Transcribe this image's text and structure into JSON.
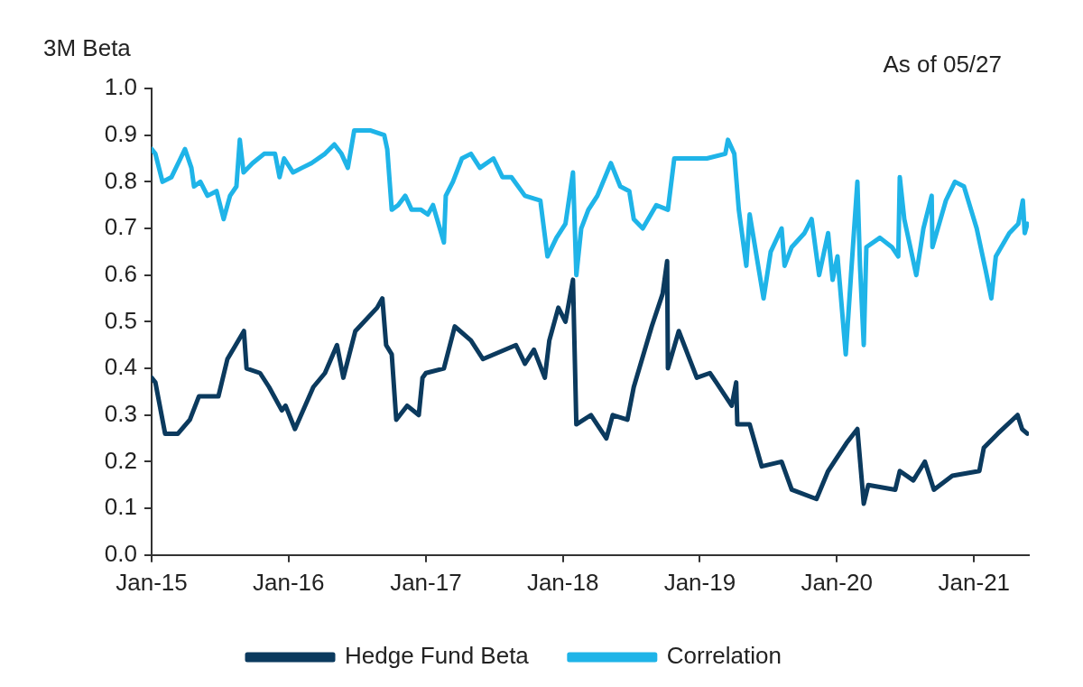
{
  "chart_data": {
    "type": "line",
    "ylabel": "3M Beta",
    "annotations": [
      "As of 05/27"
    ],
    "xlim": [
      "2015-01-01",
      "2021-05-27"
    ],
    "xticks": [
      {
        "value": "2015-01-01",
        "label": "Jan-15"
      },
      {
        "value": "2016-01-01",
        "label": "Jan-16"
      },
      {
        "value": "2017-01-01",
        "label": "Jan-17"
      },
      {
        "value": "2018-01-01",
        "label": "Jan-18"
      },
      {
        "value": "2019-01-01",
        "label": "Jan-19"
      },
      {
        "value": "2020-01-01",
        "label": "Jan-20"
      },
      {
        "value": "2021-01-01",
        "label": "Jan-21"
      }
    ],
    "ylim": [
      0,
      1
    ],
    "yticks": [
      {
        "value": 0,
        "label": "0.0"
      },
      0.1,
      0.2,
      0.3,
      0.4,
      0.5,
      0.6,
      0.7,
      0.8,
      0.9,
      {
        "value": 1,
        "label": "1.0"
      }
    ],
    "grid": false,
    "legend": "bottom",
    "marker": "none",
    "line_style": "solid",
    "series": [
      {
        "name": "Hedge Fund Beta",
        "color": "#0b3a5e",
        "x": [
          "2015-01-01",
          "2015-01-11",
          "2015-02-06",
          "2015-03-12",
          "2015-04-13",
          "2015-05-07",
          "2015-06-28",
          "2015-07-22",
          "2015-09-04",
          "2015-09-11",
          "2015-10-17",
          "2015-11-10",
          "2015-12-14",
          "2015-12-24",
          "2016-01-18",
          "2016-03-07",
          "2016-04-07",
          "2016-05-09",
          "2016-05-26",
          "2016-06-27",
          "2016-08-24",
          "2016-09-07",
          "2016-09-17",
          "2016-10-02",
          "2016-10-14",
          "2016-11-12",
          "2016-12-13",
          "2016-12-23",
          "2017-01-01",
          "2017-02-18",
          "2017-03-19",
          "2017-05-01",
          "2017-06-02",
          "2017-08-29",
          "2017-09-22",
          "2017-10-16",
          "2017-11-14",
          "2017-11-26",
          "2017-12-20",
          "2018-01-08",
          "2018-01-28",
          "2018-02-06",
          "2018-03-17",
          "2018-04-27",
          "2018-05-14",
          "2018-06-22",
          "2018-07-09",
          "2018-08-26",
          "2018-09-24",
          "2018-10-06",
          "2018-10-08",
          "2018-11-06",
          "2018-12-24",
          "2019-01-28",
          "2019-02-14",
          "2019-03-27",
          "2019-04-08",
          "2019-04-11",
          "2019-05-14",
          "2019-06-15",
          "2019-08-07",
          "2019-09-03",
          "2019-11-08",
          "2019-12-09",
          "2020-01-27",
          "2020-02-25",
          "2020-03-13",
          "2020-03-25",
          "2020-06-05",
          "2020-06-17",
          "2020-07-23",
          "2020-08-23",
          "2020-09-16",
          "2020-11-04",
          "2021-01-15",
          "2021-01-27",
          "2021-03-05",
          "2021-04-27",
          "2021-05-09",
          "2021-05-23"
        ],
        "values": [
          0.38,
          0.37,
          0.26,
          0.26,
          0.29,
          0.34,
          0.34,
          0.42,
          0.48,
          0.4,
          0.39,
          0.36,
          0.31,
          0.32,
          0.27,
          0.36,
          0.39,
          0.45,
          0.38,
          0.48,
          0.53,
          0.55,
          0.45,
          0.43,
          0.29,
          0.32,
          0.3,
          0.38,
          0.39,
          0.4,
          0.49,
          0.46,
          0.42,
          0.45,
          0.41,
          0.44,
          0.38,
          0.46,
          0.53,
          0.5,
          0.59,
          0.28,
          0.3,
          0.25,
          0.3,
          0.29,
          0.36,
          0.49,
          0.56,
          0.63,
          0.4,
          0.48,
          0.38,
          0.39,
          0.37,
          0.32,
          0.37,
          0.28,
          0.28,
          0.19,
          0.2,
          0.14,
          0.12,
          0.18,
          0.24,
          0.27,
          0.11,
          0.15,
          0.14,
          0.18,
          0.16,
          0.2,
          0.14,
          0.17,
          0.18,
          0.23,
          0.26,
          0.3,
          0.27,
          0.26
        ]
      },
      {
        "name": "Correlation",
        "color": "#1fb4e8",
        "x": [
          "2015-01-01",
          "2015-01-11",
          "2015-01-30",
          "2015-02-23",
          "2015-03-19",
          "2015-03-31",
          "2015-04-17",
          "2015-04-24",
          "2015-05-11",
          "2015-05-30",
          "2015-06-23",
          "2015-07-12",
          "2015-07-29",
          "2015-08-15",
          "2015-08-24",
          "2015-09-03",
          "2015-09-27",
          "2015-10-28",
          "2015-11-26",
          "2015-12-08",
          "2015-12-20",
          "2016-01-13",
          "2016-02-06",
          "2016-03-02",
          "2016-04-07",
          "2016-05-02",
          "2016-05-21",
          "2016-06-07",
          "2016-06-24",
          "2016-08-07",
          "2016-09-12",
          "2016-09-20",
          "2016-10-02",
          "2016-10-19",
          "2016-11-07",
          "2016-11-24",
          "2016-12-19",
          "2017-01-06",
          "2017-01-20",
          "2017-02-18",
          "2017-02-23",
          "2017-03-14",
          "2017-04-07",
          "2017-05-01",
          "2017-05-25",
          "2017-06-30",
          "2017-07-24",
          "2017-08-17",
          "2017-09-22",
          "2017-11-02",
          "2017-11-21",
          "2017-12-15",
          "2018-01-08",
          "2018-01-28",
          "2018-02-06",
          "2018-02-19",
          "2018-03-10",
          "2018-04-03",
          "2018-05-09",
          "2018-06-03",
          "2018-06-27",
          "2018-07-09",
          "2018-08-02",
          "2018-09-07",
          "2018-10-08",
          "2018-10-25",
          "2018-11-30",
          "2019-01-20",
          "2019-03-10",
          "2019-03-17",
          "2019-04-03",
          "2019-04-15",
          "2019-05-05",
          "2019-05-14",
          "2019-06-20",
          "2019-07-09",
          "2019-08-07",
          "2019-08-15",
          "2019-09-03",
          "2019-10-07",
          "2019-10-26",
          "2019-11-15",
          "2019-12-09",
          "2019-12-21",
          "2020-01-03",
          "2020-01-25",
          "2020-02-08",
          "2020-02-25",
          "2020-03-03",
          "2020-03-13",
          "2020-03-20",
          "2020-04-25",
          "2020-05-27",
          "2020-06-13",
          "2020-06-17",
          "2020-06-29",
          "2020-07-31",
          "2020-08-19",
          "2020-09-10",
          "2020-09-12",
          "2020-10-18",
          "2020-11-11",
          "2020-12-05",
          "2021-01-08",
          "2021-02-01",
          "2021-02-16",
          "2021-02-28",
          "2021-04-05",
          "2021-04-29",
          "2021-05-11",
          "2021-05-16",
          "2021-05-23"
        ],
        "values": [
          0.87,
          0.86,
          0.8,
          0.81,
          0.85,
          0.87,
          0.83,
          0.79,
          0.8,
          0.77,
          0.78,
          0.72,
          0.77,
          0.79,
          0.89,
          0.82,
          0.84,
          0.86,
          0.86,
          0.81,
          0.85,
          0.82,
          0.83,
          0.84,
          0.86,
          0.88,
          0.86,
          0.83,
          0.91,
          0.91,
          0.9,
          0.87,
          0.74,
          0.75,
          0.77,
          0.74,
          0.74,
          0.73,
          0.75,
          0.67,
          0.77,
          0.8,
          0.85,
          0.86,
          0.83,
          0.85,
          0.81,
          0.81,
          0.77,
          0.76,
          0.64,
          0.68,
          0.71,
          0.82,
          0.6,
          0.7,
          0.74,
          0.77,
          0.84,
          0.79,
          0.78,
          0.72,
          0.7,
          0.75,
          0.74,
          0.85,
          0.85,
          0.85,
          0.86,
          0.89,
          0.86,
          0.74,
          0.62,
          0.73,
          0.55,
          0.65,
          0.7,
          0.62,
          0.66,
          0.69,
          0.72,
          0.6,
          0.69,
          0.59,
          0.64,
          0.43,
          0.6,
          0.8,
          0.62,
          0.45,
          0.66,
          0.68,
          0.66,
          0.64,
          0.81,
          0.72,
          0.6,
          0.7,
          0.77,
          0.66,
          0.76,
          0.8,
          0.79,
          0.7,
          0.61,
          0.55,
          0.64,
          0.69,
          0.71,
          0.76,
          0.69,
          0.71
        ]
      }
    ]
  }
}
